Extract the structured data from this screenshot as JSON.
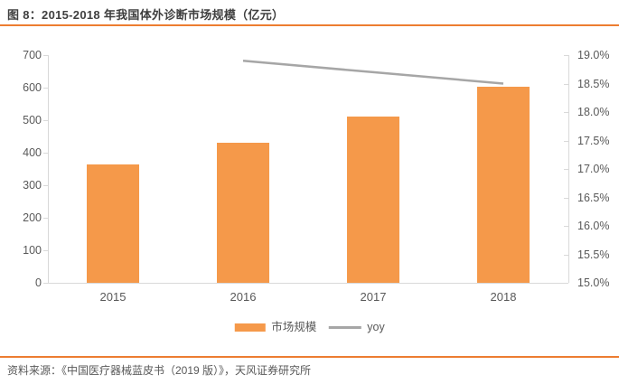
{
  "header": {
    "title": "图 8：2015-2018 年我国体外诊断市场规模（亿元）"
  },
  "footer": {
    "source": "资料来源：《中国医疗器械蓝皮书（2019 版）》，天风证券研究所"
  },
  "legend": {
    "bar_label": "市场规模",
    "line_label": "yoy"
  },
  "colors": {
    "bar": "#F5994A",
    "line": "#A6A6A6",
    "accent_rule": "#ED7D31",
    "axis_line": "#D9D9D9",
    "tick_text": "#595959",
    "title_text": "#3F3F3F"
  },
  "chart_data": {
    "type": "bar",
    "title": "图 8：2015-2018 年我国体外诊断市场规模（亿元）",
    "categories": [
      "2015",
      "2016",
      "2017",
      "2018"
    ],
    "series": [
      {
        "name": "市场规模",
        "type": "bar",
        "axis": "left",
        "values": [
          363,
          430,
          510,
          604
        ]
      },
      {
        "name": "yoy",
        "type": "line",
        "axis": "right",
        "values": [
          null,
          18.9,
          18.7,
          18.5
        ]
      }
    ],
    "xlabel": "",
    "ylabel": "",
    "left_axis": {
      "min": 0,
      "max": 700,
      "step": 100,
      "ticks": [
        "0",
        "100",
        "200",
        "300",
        "400",
        "500",
        "600",
        "700"
      ]
    },
    "right_axis": {
      "min": 15.0,
      "max": 19.0,
      "step": 0.5,
      "ticks": [
        "15.0%",
        "15.5%",
        "16.0%",
        "16.5%",
        "17.0%",
        "17.5%",
        "18.0%",
        "18.5%",
        "19.0%"
      ]
    },
    "grid": false,
    "legend_position": "bottom"
  }
}
